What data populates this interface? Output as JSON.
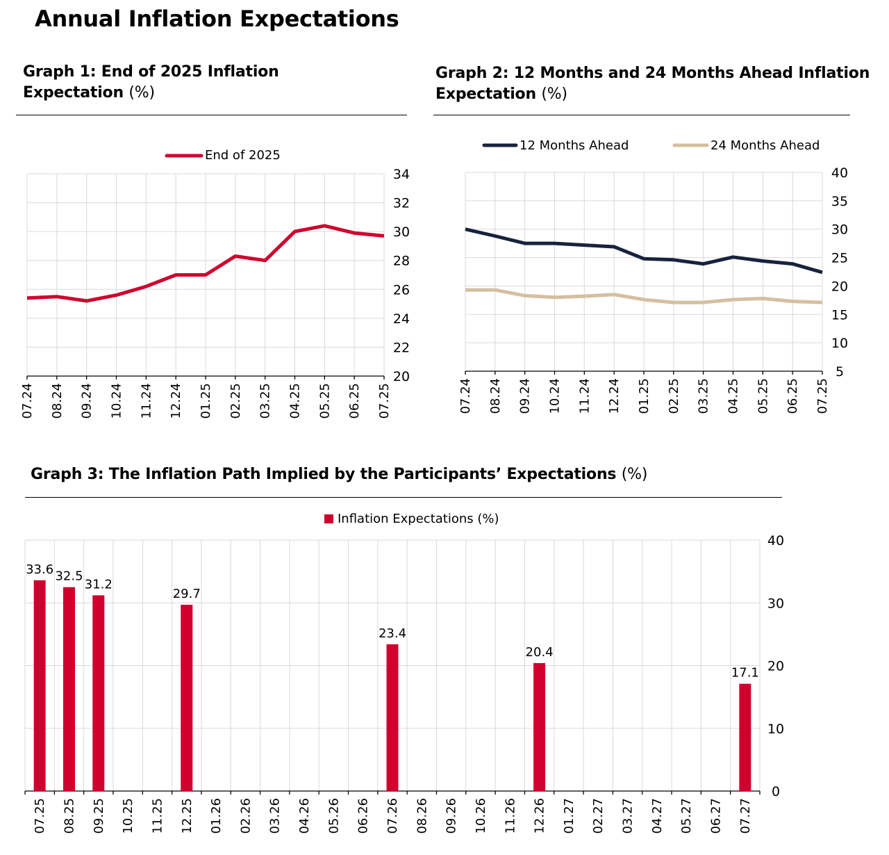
{
  "page_title": "Annual Inflation Expectations",
  "colors": {
    "red": "#d0002e",
    "navy": "#17233d",
    "beige": "#d4bf9f",
    "grid": "#d9d9d9"
  },
  "graph1": {
    "title": "Graph 1: End of 2025 Inflation Expectation",
    "title_line1": "Graph 1: End of 2025 Inflation",
    "title_line2": "Expectation",
    "unit": "(%)"
  },
  "graph2": {
    "title": "Graph 2: 12 Months and 24 Months Ahead Inflation Expectation",
    "title_line1": "Graph 2: 12 Months and 24 Months Ahead Inflation",
    "title_line2": "Expectation",
    "unit": "(%)"
  },
  "graph3": {
    "title": "Graph 3: The Inflation Path Implied by the Participants’ Expectations",
    "unit": "(%)"
  },
  "chart_data": [
    {
      "id": "graph1",
      "type": "line",
      "title": "Graph 1: End of 2025 Inflation Expectation (%)",
      "categories": [
        "07.24",
        "08.24",
        "09.24",
        "10.24",
        "11.24",
        "12.24",
        "01.25",
        "02.25",
        "03.25",
        "04.25",
        "05.25",
        "06.25",
        "07.25"
      ],
      "series": [
        {
          "name": "End of 2025",
          "color": "#d0002e",
          "values": [
            25.4,
            25.5,
            25.2,
            25.6,
            26.2,
            27.0,
            27.0,
            28.3,
            28.0,
            30.0,
            30.4,
            29.9,
            29.7
          ]
        }
      ],
      "ylim": [
        20,
        34
      ],
      "yticks": [
        20,
        22,
        24,
        26,
        28,
        30,
        32,
        34
      ],
      "y_axis_side": "right",
      "legend": "top-center",
      "grid": true
    },
    {
      "id": "graph2",
      "type": "line",
      "title": "Graph 2: 12 Months and 24 Months Ahead Inflation Expectation (%)",
      "categories": [
        "07.24",
        "08.24",
        "09.24",
        "10.24",
        "11.24",
        "12.24",
        "01.25",
        "02.25",
        "03.25",
        "04.25",
        "05.25",
        "06.25",
        "07.25"
      ],
      "series": [
        {
          "name": "12 Months Ahead",
          "color": "#17233d",
          "values": [
            30.0,
            28.8,
            27.5,
            27.5,
            27.2,
            26.9,
            24.8,
            24.6,
            23.9,
            25.1,
            24.4,
            23.9,
            22.4
          ]
        },
        {
          "name": "24 Months Ahead",
          "color": "#d4bf9f",
          "values": [
            19.3,
            19.3,
            18.3,
            18.0,
            18.2,
            18.5,
            17.6,
            17.1,
            17.1,
            17.6,
            17.8,
            17.3,
            17.1
          ]
        }
      ],
      "ylim": [
        5,
        40
      ],
      "yticks": [
        5,
        10,
        15,
        20,
        25,
        30,
        35,
        40
      ],
      "y_axis_side": "right",
      "legend": "top",
      "grid": true
    },
    {
      "id": "graph3",
      "type": "bar",
      "title": "Graph 3: The Inflation Path Implied by the Participants’ Expectations (%)",
      "categories": [
        "07.25",
        "08.25",
        "09.25",
        "10.25",
        "11.25",
        "12.25",
        "01.26",
        "02.26",
        "03.26",
        "04.26",
        "05.26",
        "06.26",
        "07.26",
        "08.26",
        "09.26",
        "10.26",
        "11.26",
        "12.26",
        "01.27",
        "02.27",
        "03.27",
        "04.27",
        "05.27",
        "06.27",
        "07.27"
      ],
      "series": [
        {
          "name": "Inflation Expectations (%)",
          "color": "#d0002e",
          "values": [
            33.6,
            32.5,
            31.2,
            null,
            null,
            29.7,
            null,
            null,
            null,
            null,
            null,
            null,
            23.4,
            null,
            null,
            null,
            null,
            20.4,
            null,
            null,
            null,
            null,
            null,
            null,
            17.1
          ],
          "labels": [
            "33.6",
            "32.5",
            "31.2",
            "",
            "",
            "29.7",
            "",
            "",
            "",
            "",
            "",
            "",
            "23.4",
            "",
            "",
            "",
            "",
            "20.4",
            "",
            "",
            "",
            "",
            "",
            "",
            "17.1"
          ]
        }
      ],
      "ylim": [
        0,
        40
      ],
      "yticks": [
        0,
        10,
        20,
        30,
        40
      ],
      "y_axis_side": "right",
      "legend": "top-center",
      "grid": true
    }
  ]
}
